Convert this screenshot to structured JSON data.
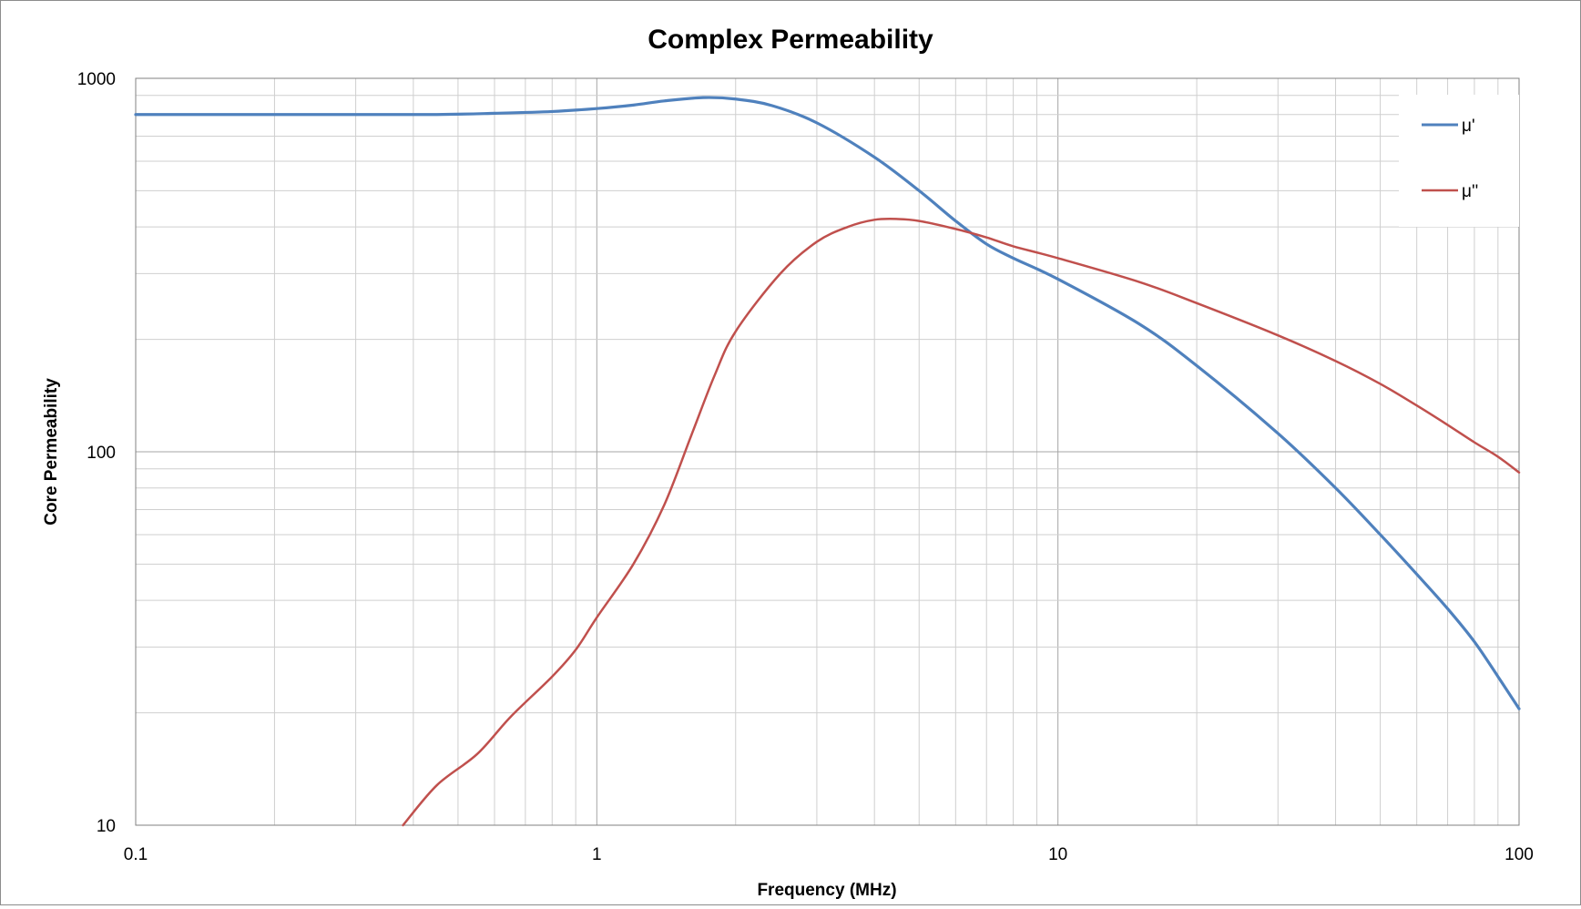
{
  "chart_data": {
    "type": "line",
    "title": "Complex Permeability",
    "xlabel": "Frequency (MHz)",
    "ylabel": "Core Permeability",
    "x_scale": "log",
    "y_scale": "log",
    "xlim": [
      0.1,
      100
    ],
    "ylim": [
      10,
      1000
    ],
    "x_ticks": [
      {
        "value": 0.1,
        "label": "0.1"
      },
      {
        "value": 1,
        "label": "1"
      },
      {
        "value": 10,
        "label": "10"
      },
      {
        "value": 100,
        "label": "100"
      }
    ],
    "y_ticks": [
      {
        "value": 10,
        "label": "10"
      },
      {
        "value": 100,
        "label": "100"
      },
      {
        "value": 1000,
        "label": "1000"
      }
    ],
    "grid": true,
    "legend": "right",
    "series": [
      {
        "name": "μ'",
        "color": "#4f81bd",
        "points": [
          [
            0.1,
            800
          ],
          [
            0.2,
            800
          ],
          [
            0.3,
            800
          ],
          [
            0.45,
            800
          ],
          [
            0.6,
            806
          ],
          [
            0.8,
            815
          ],
          [
            1.0,
            830
          ],
          [
            1.2,
            848
          ],
          [
            1.4,
            870
          ],
          [
            1.7,
            888
          ],
          [
            2.0,
            880
          ],
          [
            2.4,
            845
          ],
          [
            3.0,
            760
          ],
          [
            4.0,
            615
          ],
          [
            5.0,
            500
          ],
          [
            6.0,
            415
          ],
          [
            7.0,
            360
          ],
          [
            8.0,
            330
          ],
          [
            10.0,
            290
          ],
          [
            15.0,
            220
          ],
          [
            20.0,
            170
          ],
          [
            30.0,
            112
          ],
          [
            40.0,
            80
          ],
          [
            50.0,
            60
          ],
          [
            60.0,
            47
          ],
          [
            70.0,
            38
          ],
          [
            80.0,
            31
          ],
          [
            90.0,
            25
          ],
          [
            100.0,
            20.5
          ]
        ]
      },
      {
        "name": "μ''",
        "color": "#c0504d",
        "points": [
          [
            0.38,
            10
          ],
          [
            0.45,
            12.8
          ],
          [
            0.55,
            15.5
          ],
          [
            0.65,
            19.5
          ],
          [
            0.8,
            25
          ],
          [
            0.9,
            29.5
          ],
          [
            1.0,
            36
          ],
          [
            1.2,
            50
          ],
          [
            1.4,
            72
          ],
          [
            1.6,
            110
          ],
          [
            1.8,
            160
          ],
          [
            2.0,
            210
          ],
          [
            2.5,
            300
          ],
          [
            3.0,
            365
          ],
          [
            3.5,
            400
          ],
          [
            4.0,
            418
          ],
          [
            4.5,
            420
          ],
          [
            5.0,
            415
          ],
          [
            6.0,
            395
          ],
          [
            7.0,
            375
          ],
          [
            8.0,
            355
          ],
          [
            10.0,
            330
          ],
          [
            15.0,
            285
          ],
          [
            20.0,
            250
          ],
          [
            30.0,
            205
          ],
          [
            40.0,
            175
          ],
          [
            50.0,
            152
          ],
          [
            60.0,
            133
          ],
          [
            70.0,
            118
          ],
          [
            80.0,
            106
          ],
          [
            90.0,
            97
          ],
          [
            100.0,
            88
          ]
        ]
      }
    ]
  }
}
